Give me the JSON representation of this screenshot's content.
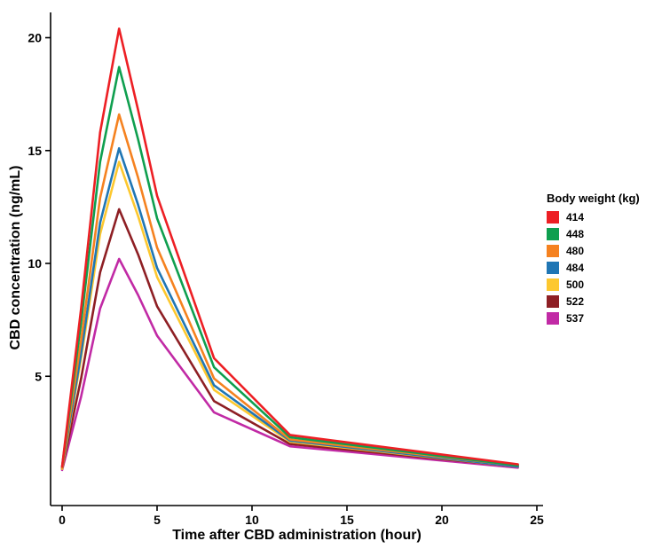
{
  "axes": {
    "x_title": "Time after CBD administration (hour)",
    "y_title": "CBD concentration (ng/mL)",
    "x_ticks": [
      0,
      5,
      10,
      15,
      20,
      25
    ],
    "y_ticks": [
      5,
      10,
      15,
      20
    ]
  },
  "legend": {
    "title": "Body weight (kg)",
    "items": [
      {
        "label": "414",
        "color": "#ed1f24"
      },
      {
        "label": "448",
        "color": "#0f9f4f"
      },
      {
        "label": "480",
        "color": "#f58220"
      },
      {
        "label": "484",
        "color": "#2076b4"
      },
      {
        "label": "500",
        "color": "#fdc82f"
      },
      {
        "label": "522",
        "color": "#8e1f24"
      },
      {
        "label": "537",
        "color": "#c12aa5"
      }
    ]
  },
  "chart_data": {
    "type": "line",
    "title": "",
    "xlabel": "Time after CBD administration (hour)",
    "ylabel": "CBD concentration (ng/mL)",
    "legend_title": "Body weight (kg)",
    "legend_position": "right",
    "grid": false,
    "xlim": [
      -0.8,
      25.8
    ],
    "ylim": [
      -0.7,
      21
    ],
    "x": [
      0,
      1,
      2,
      3,
      4,
      5,
      8,
      12,
      24
    ],
    "series": [
      {
        "name": "414",
        "color": "#ed1f24",
        "values": [
          1.0,
          8.0,
          15.8,
          20.4,
          16.8,
          13.0,
          5.8,
          2.4,
          1.1
        ]
      },
      {
        "name": "448",
        "color": "#0f9f4f",
        "values": [
          1.0,
          7.4,
          14.5,
          18.7,
          15.5,
          12.0,
          5.4,
          2.3,
          1.05
        ]
      },
      {
        "name": "480",
        "color": "#f58220",
        "values": [
          0.95,
          6.6,
          12.9,
          16.6,
          13.8,
          10.7,
          4.9,
          2.2,
          1.05
        ]
      },
      {
        "name": "484",
        "color": "#2076b4",
        "values": [
          0.95,
          6.0,
          11.8,
          15.1,
          12.6,
          9.8,
          4.6,
          2.15,
          1.0
        ]
      },
      {
        "name": "500",
        "color": "#fdc82f",
        "values": [
          0.9,
          5.8,
          11.3,
          14.5,
          12.1,
          9.4,
          4.4,
          2.1,
          1.0
        ]
      },
      {
        "name": "522",
        "color": "#8e1f24",
        "values": [
          0.9,
          4.9,
          9.6,
          12.4,
          10.4,
          8.1,
          3.9,
          2.0,
          1.0
        ]
      },
      {
        "name": "537",
        "color": "#c12aa5",
        "values": [
          0.85,
          4.1,
          8.0,
          10.2,
          8.6,
          6.8,
          3.4,
          1.9,
          0.95
        ]
      }
    ]
  }
}
